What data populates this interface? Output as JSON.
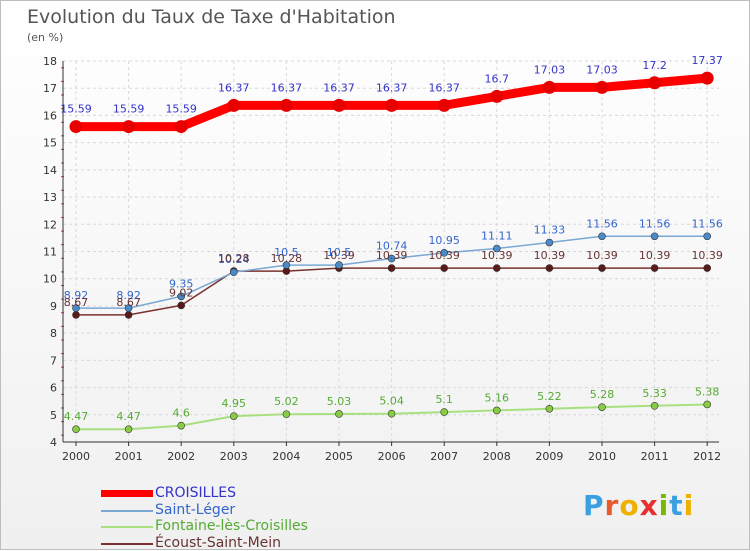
{
  "title": "Evolution du Taux de Taxe d'Habitation",
  "unit": "(en %)",
  "logo": {
    "letters": [
      "P",
      "r",
      "o",
      "x",
      "i",
      "t",
      "i"
    ],
    "colors": [
      "#3aa0e0",
      "#e85a2a",
      "#f0b000",
      "#e83030",
      "#7ab800",
      "#3aa0e0",
      "#f0b000"
    ]
  },
  "chart_data": {
    "type": "line",
    "x": [
      2000,
      2001,
      2002,
      2003,
      2004,
      2005,
      2006,
      2007,
      2008,
      2009,
      2010,
      2011,
      2012
    ],
    "ylim": [
      4,
      18
    ],
    "yticks": [
      4,
      5,
      6,
      7,
      8,
      9,
      10,
      11,
      12,
      13,
      14,
      15,
      16,
      17,
      18
    ],
    "grid": true,
    "legend_position": "bottom-left",
    "series": [
      {
        "name": "CROISILLES",
        "color": "#ff0000",
        "labelColor": "#3333cc",
        "values": [
          15.59,
          15.59,
          15.59,
          16.37,
          16.37,
          16.37,
          16.37,
          16.37,
          16.7,
          17.03,
          17.03,
          17.2,
          17.37
        ],
        "labels": [
          "15.59",
          "15.59",
          "15.59",
          "16.37",
          "16.37",
          "16.37",
          "16.37",
          "16.37",
          "16.7",
          "17.03",
          "17.03",
          "17.2",
          "17.37"
        ]
      },
      {
        "name": "Saint-Léger",
        "color": "#7aa7d4",
        "labelColor": "#3366cc",
        "values": [
          8.92,
          8.92,
          9.35,
          10.24,
          10.5,
          10.5,
          10.74,
          10.95,
          11.11,
          11.33,
          11.56,
          11.56,
          11.56
        ],
        "labels": [
          "8.92",
          "8.92",
          "9.35",
          "10.24",
          "10.5",
          "10.5",
          "10.74",
          "10.95",
          "11.11",
          "11.33",
          "11.56",
          "11.56",
          "11.56"
        ]
      },
      {
        "name": "Fontaine-lès-Croisilles",
        "color": "#a8e080",
        "labelColor": "#55aa33",
        "values": [
          4.47,
          4.47,
          4.6,
          4.95,
          5.02,
          5.03,
          5.04,
          5.1,
          5.16,
          5.22,
          5.28,
          5.33,
          5.38
        ],
        "labels": [
          "4.47",
          "4.47",
          "4.6",
          "4.95",
          "5.02",
          "5.03",
          "5.04",
          "5.1",
          "5.16",
          "5.22",
          "5.28",
          "5.33",
          "5.38"
        ]
      },
      {
        "name": "Écoust-Saint-Mein",
        "color": "#7a3030",
        "labelColor": "#663333",
        "values": [
          8.67,
          8.67,
          9.02,
          10.28,
          10.28,
          10.39,
          10.39,
          10.39,
          10.39,
          10.39,
          10.39,
          10.39,
          10.39
        ],
        "labels": [
          "8.67",
          "8.67",
          "9.02",
          "10.28",
          "10.28",
          "10.39",
          "10.39",
          "10.39",
          "10.39",
          "10.39",
          "10.39",
          "10.39",
          "10.39"
        ]
      }
    ]
  }
}
